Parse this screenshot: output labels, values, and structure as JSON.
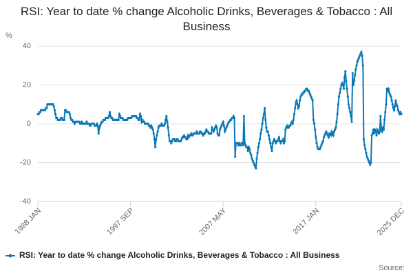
{
  "chart_data": {
    "type": "line",
    "title": "RSI: Year to date % change Alcoholic Drinks, Beverages & Tobacco : All Business",
    "y_label": "%",
    "source": "Source:",
    "grid": true,
    "ylim": [
      -40,
      40
    ],
    "yticks": [
      -40,
      -20,
      0,
      20,
      40
    ],
    "categories": [
      "1988 JAN",
      null,
      null,
      null,
      null,
      null,
      null,
      null,
      null,
      null,
      null,
      null,
      null,
      null,
      null,
      null,
      null,
      null,
      null,
      null,
      null,
      null,
      null,
      null,
      null,
      null,
      null,
      null,
      null,
      null,
      null,
      null,
      null,
      null,
      null,
      null,
      null,
      null,
      null,
      null,
      null,
      null,
      null,
      null,
      null,
      null,
      null,
      null,
      null,
      null,
      null,
      null,
      null,
      null,
      null,
      null,
      null,
      null,
      null,
      null,
      null,
      null,
      null,
      null,
      null,
      null,
      null,
      null,
      null,
      null,
      null,
      null,
      null,
      null,
      null,
      null,
      null,
      null,
      null,
      null,
      null,
      null,
      null,
      null,
      null,
      null,
      null,
      null,
      null,
      null,
      null,
      null,
      null,
      null,
      null,
      null,
      null,
      null,
      null,
      null,
      null,
      null,
      null,
      null,
      null,
      null,
      null,
      null,
      null,
      null,
      null,
      null,
      null,
      null,
      null,
      null,
      "1997 SEP",
      null,
      null,
      null,
      null,
      null,
      null,
      null,
      null,
      null,
      null,
      null,
      null,
      null,
      null,
      null,
      null,
      null,
      null,
      null,
      null,
      null,
      null,
      null,
      null,
      null,
      null,
      null,
      null,
      null,
      null,
      null,
      null,
      null,
      null,
      null,
      null,
      null,
      null,
      null,
      null,
      null,
      null,
      null,
      null,
      null,
      null,
      null,
      null,
      null,
      null,
      null,
      null,
      null,
      null,
      null,
      null,
      null,
      null,
      null,
      null,
      null,
      null,
      null,
      null,
      null,
      null,
      null,
      null,
      null,
      null,
      null,
      null,
      null,
      null,
      null,
      null,
      null,
      null,
      null,
      null,
      null,
      null,
      null,
      null,
      null,
      null,
      null,
      null,
      null,
      null,
      null,
      null,
      null,
      null,
      null,
      null,
      null,
      null,
      null,
      null,
      null,
      null,
      null,
      null,
      null,
      null,
      null,
      null,
      null,
      null,
      null,
      null,
      null,
      null,
      null,
      "2007 MAY",
      null,
      null,
      null,
      null,
      null,
      null,
      null,
      null,
      null,
      null,
      null,
      null,
      null,
      null,
      null,
      null,
      null,
      null,
      null,
      null,
      null,
      null,
      null,
      null,
      null,
      null,
      null,
      null,
      null,
      null,
      null,
      null,
      null,
      null,
      null,
      null,
      null,
      null,
      null,
      null,
      null,
      null,
      null,
      null,
      null,
      null,
      null,
      null,
      null,
      null,
      null,
      null,
      null,
      null,
      null,
      null,
      null,
      null,
      null,
      null,
      null,
      null,
      null,
      null,
      null,
      null,
      null,
      null,
      null,
      null,
      null,
      null,
      null,
      null,
      null,
      null,
      null,
      null,
      null,
      null,
      null,
      null,
      null,
      null,
      null,
      null,
      null,
      null,
      null,
      null,
      null,
      null,
      null,
      null,
      null,
      null,
      null,
      null,
      null,
      null,
      null,
      null,
      null,
      null,
      null,
      null,
      null,
      null,
      null,
      null,
      null,
      null,
      null,
      null,
      null,
      "2017 JAN",
      null,
      null,
      null,
      null,
      null,
      null,
      null,
      null,
      null,
      null,
      null,
      null,
      null,
      null,
      null,
      null,
      null,
      null,
      null,
      null,
      null,
      null,
      null,
      null,
      null,
      null,
      null,
      null,
      null,
      null,
      null,
      null,
      null,
      null,
      null,
      null,
      null,
      null,
      null,
      null,
      null,
      null,
      null,
      null,
      null,
      null,
      null,
      null,
      null,
      null,
      null,
      null,
      null,
      null,
      null,
      null,
      null,
      null,
      null,
      null,
      null,
      null,
      null,
      null,
      null,
      null,
      null,
      null,
      null,
      null,
      null,
      null,
      null,
      null,
      null,
      null,
      null,
      null,
      null,
      null,
      null,
      null,
      null,
      null,
      null,
      null,
      null,
      null,
      null,
      null,
      null,
      null,
      null,
      null,
      null,
      null,
      null,
      null,
      null,
      null,
      null,
      null,
      null,
      null,
      null,
      null,
      "2025 DEC"
    ],
    "series": [
      {
        "name": "RSI: Year to date % change Alcoholic Drinks, Beverages & Tobacco : All Business",
        "color": "#0a77b5",
        "values": [
          5,
          5,
          6,
          6,
          7,
          7,
          7,
          7,
          7,
          7,
          8,
          8,
          10,
          10,
          10,
          10,
          10,
          10,
          10,
          10,
          9,
          7,
          5,
          3,
          3,
          2,
          2,
          2,
          2,
          3,
          3,
          2,
          2,
          2,
          7,
          7,
          6,
          6,
          6,
          6,
          5,
          3,
          2,
          2,
          1,
          1,
          0,
          1,
          1,
          1,
          1,
          1,
          1,
          0,
          0,
          1,
          0,
          0,
          0,
          0,
          0,
          1,
          0,
          0,
          0,
          -1,
          -1,
          0,
          0,
          0,
          0,
          -1,
          -1,
          -1,
          0,
          -1,
          -5,
          -2,
          -1,
          0,
          1,
          1,
          2,
          2,
          2,
          3,
          3,
          3,
          3,
          4,
          6,
          4,
          3,
          3,
          2,
          2,
          2,
          2,
          2,
          2,
          2,
          2,
          5,
          4,
          3,
          3,
          3,
          2,
          2,
          2,
          2,
          2,
          2,
          3,
          3,
          3,
          3,
          3,
          4,
          4,
          4,
          4,
          4,
          4,
          3,
          3,
          2,
          2,
          5,
          4,
          1,
          2,
          1,
          1,
          0,
          0,
          0,
          0,
          0,
          -1,
          -1,
          -2,
          -1,
          -2,
          -3,
          -5,
          -8,
          -12,
          -8,
          -6,
          -4,
          -2,
          -1,
          -1,
          -1,
          0,
          -1,
          -1,
          -1,
          0,
          2,
          4,
          1,
          -2,
          -6,
          -9,
          -9,
          -10,
          -9,
          -8,
          -8,
          -8,
          -9,
          -9,
          -8,
          -8,
          -9,
          -9,
          -9,
          -9,
          -8,
          -7,
          -7,
          -6,
          -7,
          -7,
          -8,
          -8,
          -6,
          -7,
          -6,
          -6,
          -5,
          -6,
          -6,
          -5,
          -5,
          -5,
          -5,
          -4,
          -5,
          -5,
          -5,
          -4,
          -4,
          -5,
          -5,
          -6,
          -5,
          -5,
          -4,
          -3,
          -4,
          -4,
          -5,
          -5,
          -5,
          -5,
          -2,
          -3,
          -4,
          -3,
          -2,
          -1,
          -2,
          -5,
          -6,
          -6,
          -3,
          -2,
          -1,
          0,
          1,
          -1,
          -4,
          -3,
          -2,
          -1,
          0,
          1,
          1,
          2,
          2,
          3,
          3,
          4,
          3,
          -17,
          -10,
          -10,
          -10,
          -11,
          -10,
          -11,
          -11,
          -10,
          -10,
          -11,
          4,
          -10,
          -11,
          -12,
          -12,
          -14,
          -12,
          -13,
          -15,
          -16,
          -18,
          -19,
          -20,
          -21,
          -22,
          -23,
          -18,
          -15,
          -12,
          -10,
          -8,
          -5,
          -3,
          0,
          3,
          5,
          8,
          2,
          -2,
          -4,
          -4,
          -6,
          -8,
          -10,
          -12,
          -14,
          -10,
          -9,
          -8,
          -9,
          -10,
          -9,
          -9,
          -8,
          -7,
          -9,
          -10,
          -9,
          -9,
          -8,
          -10,
          -9,
          -3,
          -2,
          -1,
          -2,
          -2,
          -1,
          -1,
          0,
          1,
          0,
          2,
          5,
          8,
          11,
          12,
          10,
          8,
          9,
          12,
          14,
          15,
          15,
          16,
          16,
          17,
          17,
          18,
          18,
          17,
          17,
          16,
          15,
          14,
          13,
          12,
          2,
          0,
          -3,
          -7,
          -10,
          -12,
          -13,
          -13,
          -13,
          -12,
          -11,
          -10,
          -9,
          -7,
          -6,
          -5,
          -4,
          -5,
          -6,
          -7,
          -5,
          -5,
          -6,
          -4,
          -5,
          -6,
          -4,
          -3,
          -2,
          1,
          5,
          10,
          14,
          16,
          18,
          20,
          21,
          20,
          18,
          24,
          27,
          22,
          18,
          14,
          10,
          8,
          6,
          4,
          1,
          26,
          20,
          22,
          25,
          28,
          30,
          32,
          33,
          34,
          35,
          36,
          37,
          35,
          30,
          -8,
          -11,
          -13,
          -15,
          -17,
          -18,
          -19,
          -20,
          -21,
          -20,
          -6,
          -5,
          -3,
          -5,
          -3,
          -4,
          -6,
          -3,
          -4,
          -5,
          -4,
          4,
          -3,
          -4,
          -2,
          -3,
          2,
          6,
          10,
          18,
          17,
          18,
          16,
          15,
          14,
          12,
          10,
          8,
          7,
          9,
          12,
          10,
          9,
          7,
          6,
          5,
          6,
          5
        ]
      }
    ]
  }
}
